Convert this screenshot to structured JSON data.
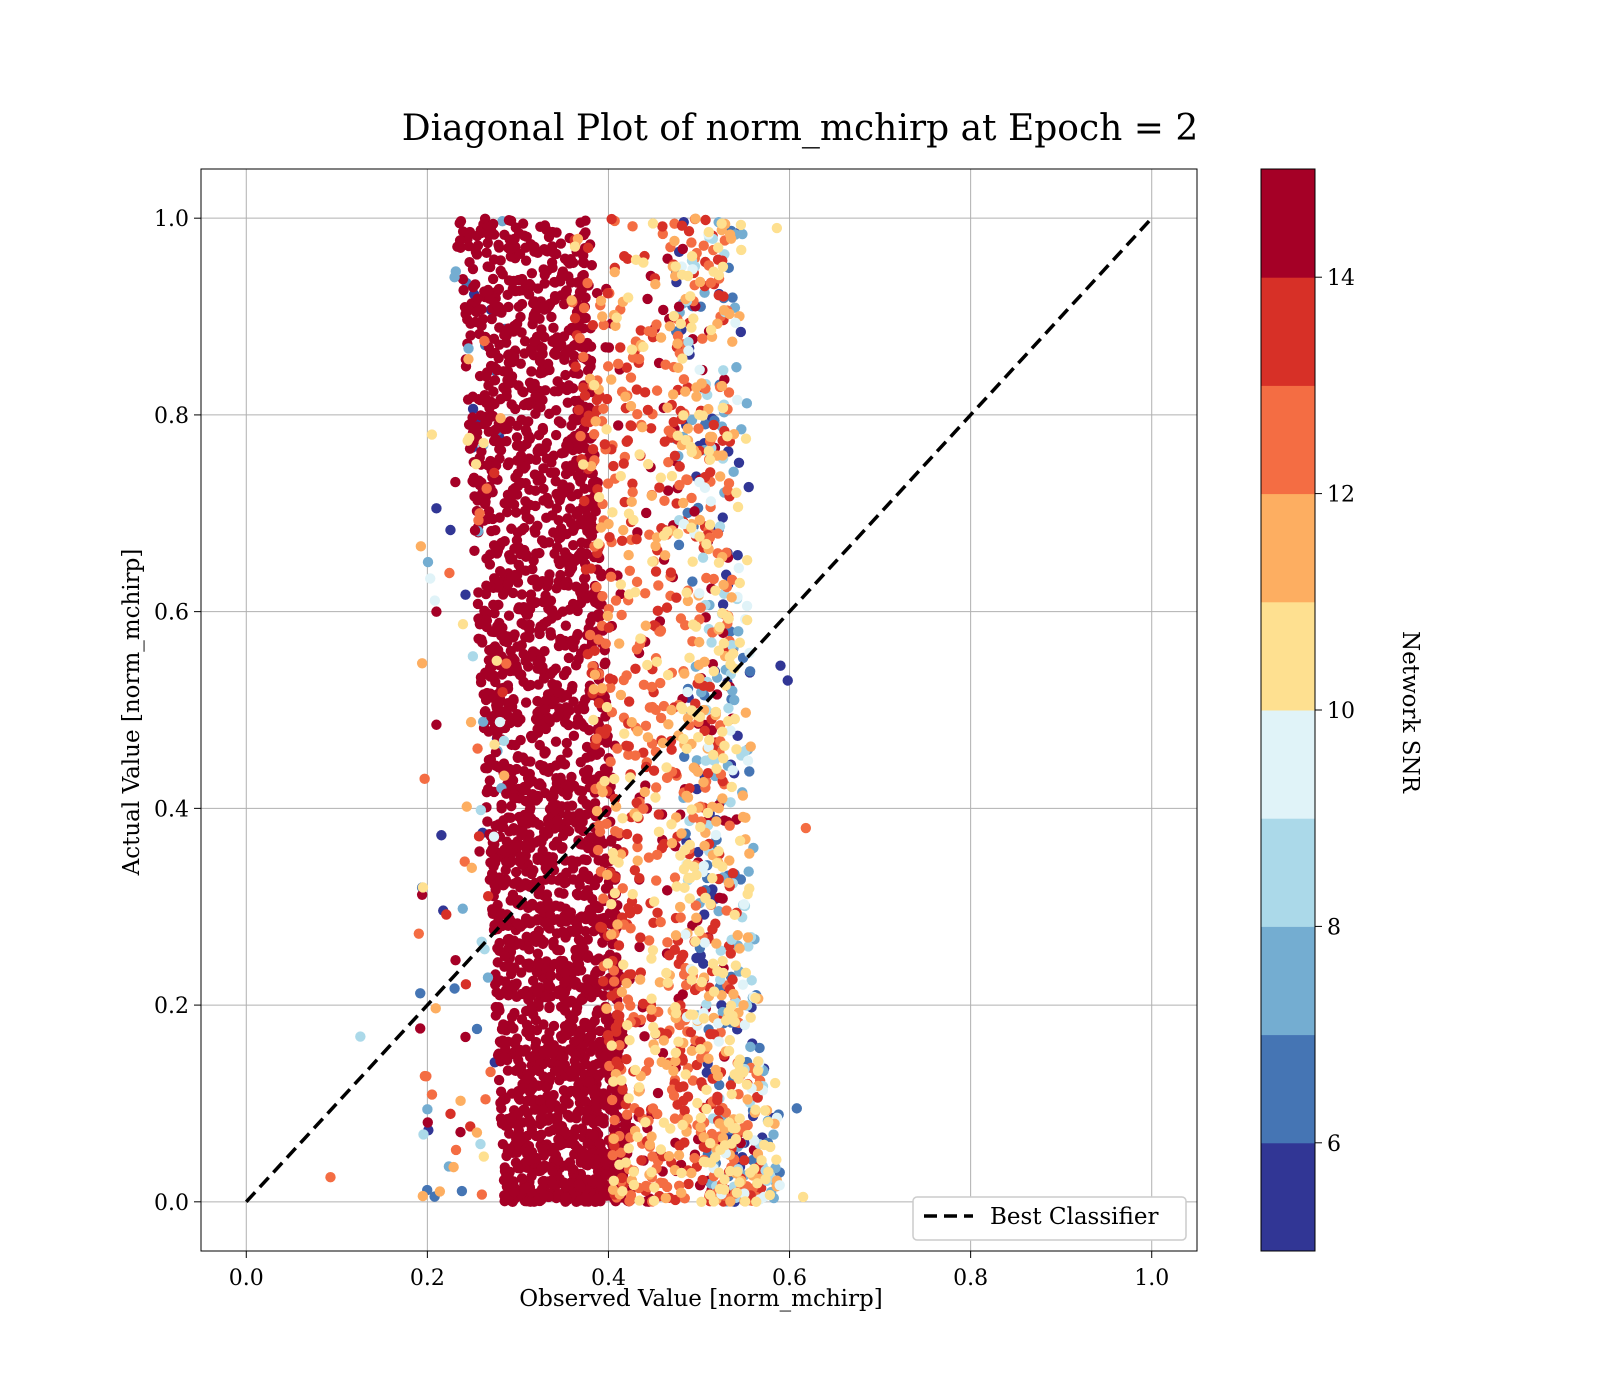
{
  "chart_data": {
    "type": "scatter",
    "title": "Diagonal Plot of norm_mchirp at Epoch = 2",
    "xlabel": "Observed Value [norm_mchirp]",
    "ylabel": "Actual Value [norm_mchirp]",
    "xlim": [
      -0.05,
      1.05
    ],
    "ylim": [
      -0.05,
      1.05
    ],
    "x_ticks": [
      "0.0",
      "0.2",
      "0.4",
      "0.6",
      "0.8",
      "1.0"
    ],
    "y_ticks": [
      "0.0",
      "0.2",
      "0.4",
      "0.6",
      "0.8",
      "1.0"
    ],
    "grid": true,
    "series": [
      {
        "name": "Best Classifier",
        "kind": "line",
        "style": "dashed",
        "color": "#000000",
        "x": [
          0.0,
          1.0
        ],
        "y": [
          0.0,
          1.0
        ]
      }
    ],
    "scatter_summary": {
      "x_range_dense": [
        0.25,
        0.57
      ],
      "y_range": [
        0.0,
        1.0
      ],
      "color_variable": "Network SNR"
    },
    "legend": {
      "position": "lower-right",
      "entries": [
        "Best Classifier"
      ]
    },
    "colorbar": {
      "label": "Network SNR",
      "range": [
        5,
        15
      ],
      "ticks": [
        "6",
        "8",
        "10",
        "12",
        "14"
      ],
      "colors": [
        "#313695",
        "#4575b4",
        "#74add1",
        "#abd9e9",
        "#e0f3f8",
        "#fee090",
        "#fdae61",
        "#f46d43",
        "#d73027",
        "#a50026"
      ]
    }
  }
}
